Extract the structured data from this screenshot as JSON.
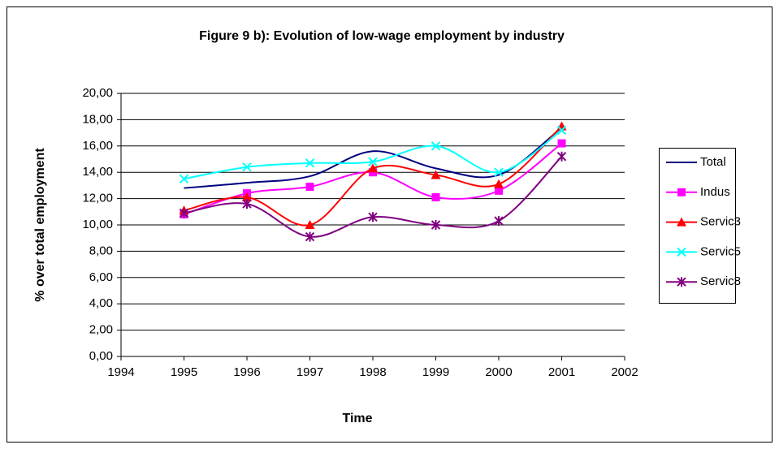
{
  "chart_data": {
    "type": "line",
    "title": "Figure 9 b): Evolution of low-wage employment by industry",
    "x_label": "Time",
    "y_label": "% over total employment",
    "x": [
      1995,
      1996,
      1997,
      1998,
      1999,
      2000,
      2001
    ],
    "xlim": [
      1994,
      2002
    ],
    "xticks": [
      1994,
      1995,
      1996,
      1997,
      1998,
      1999,
      2000,
      2001,
      2002
    ],
    "ylim": [
      0,
      20
    ],
    "yticks": [
      {
        "value": 0,
        "label": "0,00"
      },
      {
        "value": 2,
        "label": "2,00"
      },
      {
        "value": 4,
        "label": "4,00"
      },
      {
        "value": 6,
        "label": "6,00"
      },
      {
        "value": 8,
        "label": "8,00"
      },
      {
        "value": 10,
        "label": "10,00"
      },
      {
        "value": 12,
        "label": "12,00"
      },
      {
        "value": 14,
        "label": "14,00"
      },
      {
        "value": 16,
        "label": "16,00"
      },
      {
        "value": 18,
        "label": "18,00"
      },
      {
        "value": 20,
        "label": "20,00"
      }
    ],
    "grid": true,
    "smooth": true,
    "legend": "right",
    "series": [
      {
        "name": "Total",
        "color": "#000080",
        "marker": "none",
        "values": [
          12.8,
          13.2,
          13.7,
          15.6,
          14.3,
          13.8,
          17.4
        ]
      },
      {
        "name": "Indus",
        "color": "#ff00ff",
        "marker": "square",
        "values": [
          10.8,
          12.4,
          12.9,
          14.0,
          12.1,
          12.6,
          16.2
        ]
      },
      {
        "name": "Servic3",
        "color": "#ff0000",
        "marker": "triangle",
        "values": [
          11.1,
          12.1,
          10.0,
          14.3,
          13.8,
          13.1,
          17.5
        ]
      },
      {
        "name": "Servic5",
        "color": "#00ffff",
        "marker": "x",
        "values": [
          13.5,
          14.4,
          14.7,
          14.8,
          16.0,
          14.0,
          17.2
        ]
      },
      {
        "name": "Servic8",
        "color": "#800080",
        "marker": "star",
        "values": [
          10.9,
          11.6,
          9.1,
          10.6,
          10.0,
          10.3,
          15.2
        ]
      }
    ]
  }
}
